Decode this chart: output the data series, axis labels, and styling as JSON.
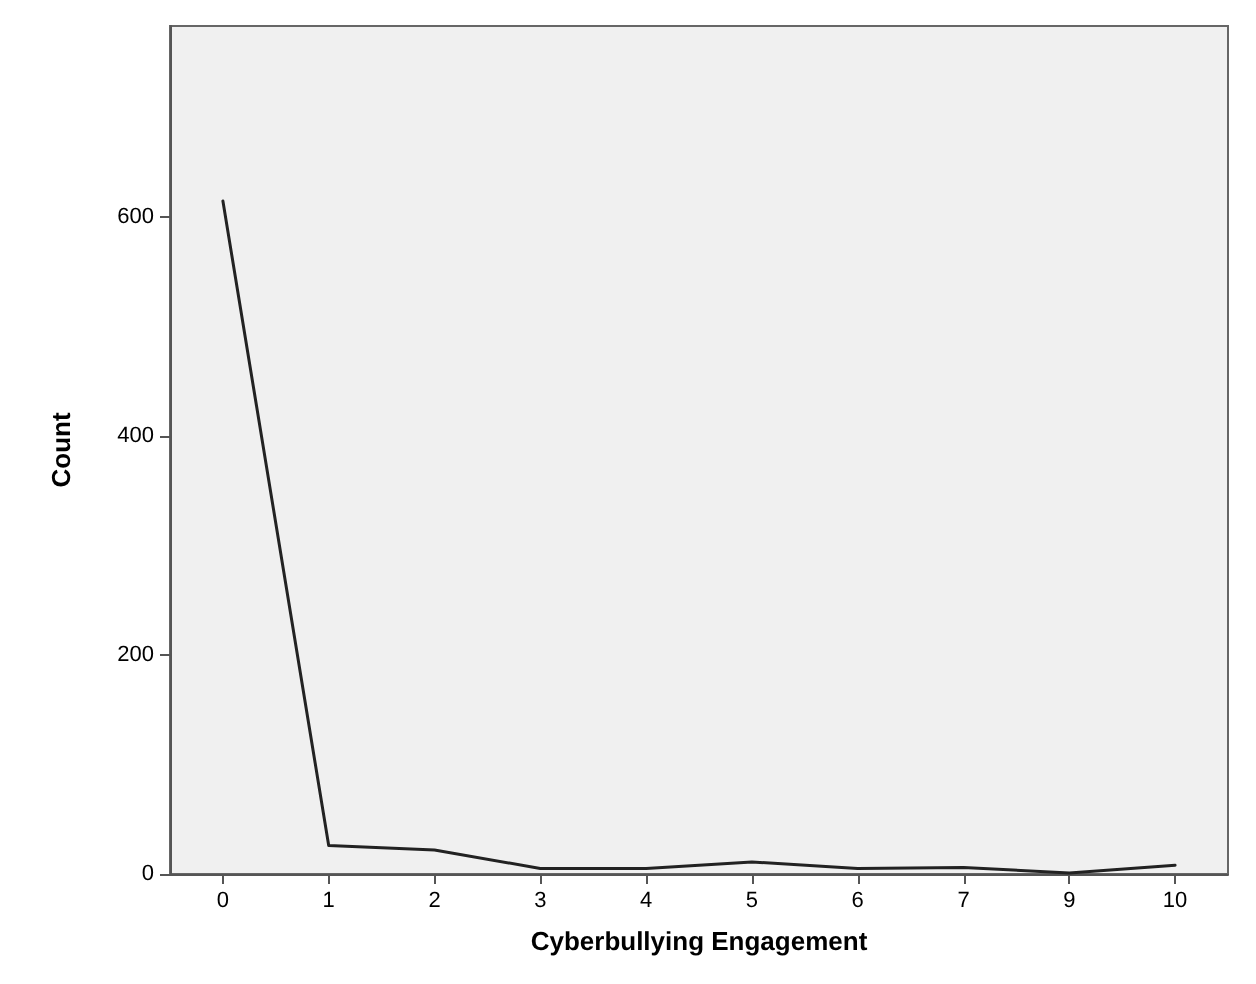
{
  "chart_data": {
    "type": "line",
    "xlabel": "Cyberbullying Engagement",
    "ylabel": "Count",
    "categories": [
      "0",
      "1",
      "2",
      "3",
      "4",
      "5",
      "6",
      "7",
      "9",
      "10"
    ],
    "series": [
      {
        "color": "#222222",
        "values": [
          615,
          26,
          22,
          5,
          5,
          11,
          5,
          6,
          1,
          8
        ]
      }
    ],
    "ylim": [
      0,
      775
    ],
    "yticks": [
      0,
      200,
      400,
      600
    ],
    "grid": false,
    "marker": "none",
    "line_style": "solid"
  }
}
